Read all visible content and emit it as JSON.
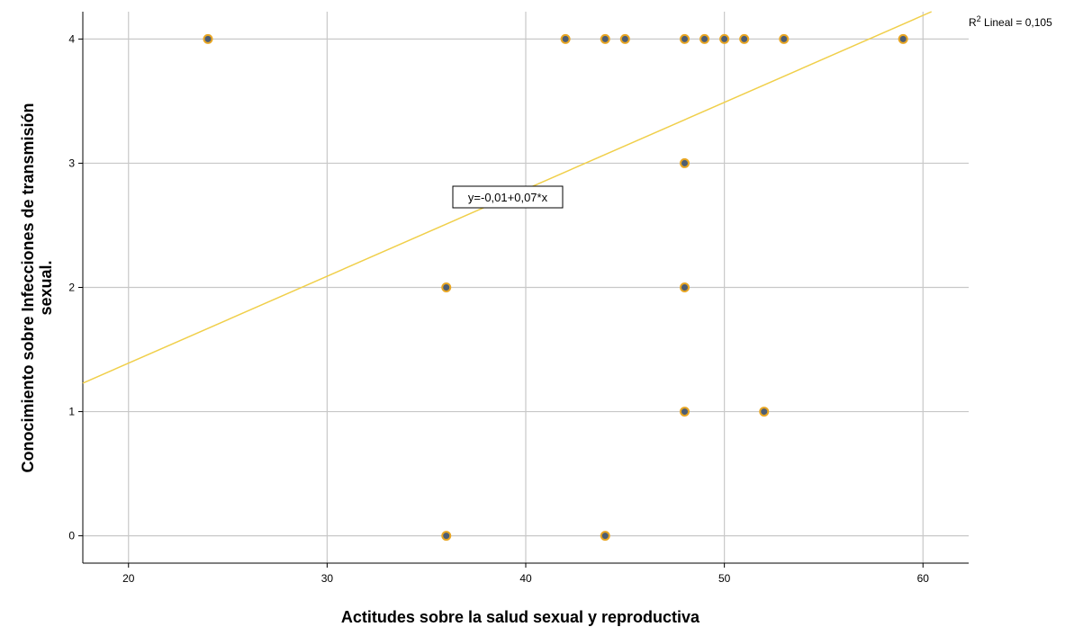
{
  "chart_data": {
    "type": "scatter",
    "xlabel": "Actitudes sobre la salud sexual y reproductiva",
    "ylabel_lines": [
      "Conocimiento sobre Infecciones de transmisión",
      "sexual."
    ],
    "xlim": [
      17.7,
      62.3
    ],
    "ylim": [
      -0.22,
      4.22
    ],
    "xticks": [
      20,
      30,
      40,
      50,
      60
    ],
    "yticks": [
      0,
      1,
      2,
      3,
      4
    ],
    "xtick_labels": [
      "20",
      "30",
      "40",
      "50",
      "60"
    ],
    "ytick_labels": [
      "0",
      "1",
      "2",
      "3",
      "4"
    ],
    "grid": true,
    "points": [
      {
        "x": 24,
        "y": 4
      },
      {
        "x": 42,
        "y": 4
      },
      {
        "x": 44,
        "y": 4
      },
      {
        "x": 45,
        "y": 4
      },
      {
        "x": 48,
        "y": 4
      },
      {
        "x": 49,
        "y": 4
      },
      {
        "x": 50,
        "y": 4
      },
      {
        "x": 51,
        "y": 4
      },
      {
        "x": 53,
        "y": 4
      },
      {
        "x": 59,
        "y": 4
      },
      {
        "x": 48,
        "y": 3
      },
      {
        "x": 36,
        "y": 2
      },
      {
        "x": 48,
        "y": 2
      },
      {
        "x": 48,
        "y": 1
      },
      {
        "x": 52,
        "y": 1
      },
      {
        "x": 36,
        "y": 0
      },
      {
        "x": 44,
        "y": 0
      }
    ],
    "fit_line": {
      "intercept": -0.01,
      "slope": 0.07
    },
    "equation_label": "y=-0,01+0,07*x",
    "r2_label": {
      "prefix": "R",
      "superscript": "2",
      "suffix": " Lineal = 0,105"
    },
    "colors": {
      "marker_fill": "#4d5d73",
      "marker_edge": "#e8a624",
      "fit_line": "#f0cf4a",
      "grid": "#c8c8c8",
      "axis": "#000000"
    }
  }
}
